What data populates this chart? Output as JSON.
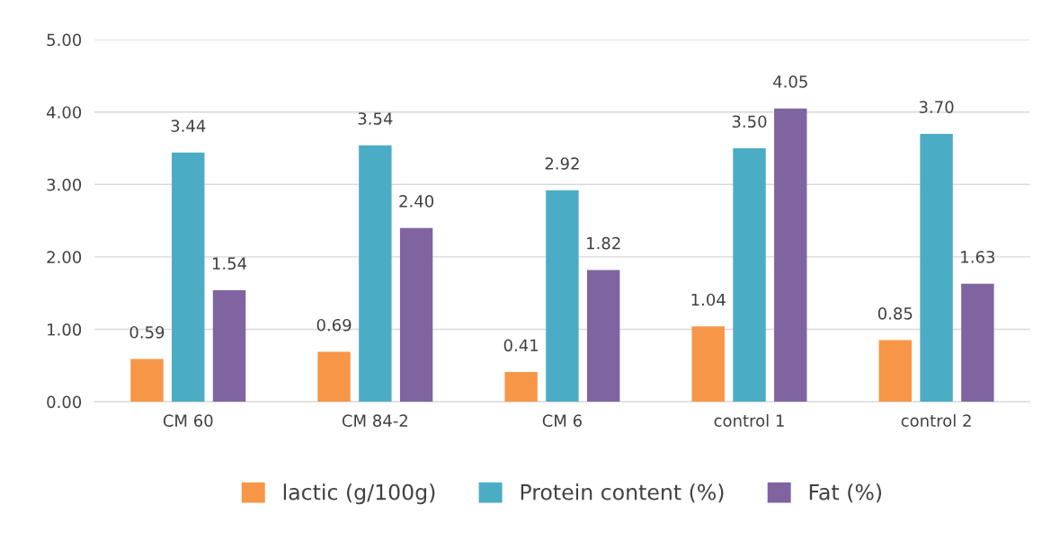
{
  "chart_data": {
    "type": "bar",
    "categories": [
      "CM 60",
      "CM 84-2",
      "CM 6",
      "control 1",
      "control 2"
    ],
    "series": [
      {
        "name": "lactic (g/100g)",
        "color": "#f79646",
        "values": [
          0.59,
          0.69,
          0.41,
          1.04,
          0.85
        ]
      },
      {
        "name": "Protein content (%)",
        "color": "#4bacc6",
        "values": [
          3.44,
          3.54,
          2.92,
          3.5,
          3.7
        ]
      },
      {
        "name": "Fat (%)",
        "color": "#8064a2",
        "values": [
          1.54,
          2.4,
          1.82,
          4.05,
          1.63
        ]
      }
    ],
    "ylim": [
      0,
      5
    ],
    "yticks": [
      {
        "value": 0,
        "label": "0.00"
      },
      {
        "value": 1,
        "label": "1.00"
      },
      {
        "value": 2,
        "label": "2.00"
      },
      {
        "value": 3,
        "label": "3.00"
      },
      {
        "value": 4,
        "label": "4.00"
      },
      {
        "value": 5,
        "label": "5.00"
      }
    ],
    "grid": "y",
    "legend": "bottom",
    "value_labels": [
      [
        "0.59",
        "0.69",
        "0.41",
        "1.04",
        "0.85"
      ],
      [
        "3.44",
        "3.54",
        "2.92",
        "3.50",
        "3.70"
      ],
      [
        "1.54",
        "2.40",
        "1.82",
        "4.05",
        "1.63"
      ]
    ]
  }
}
